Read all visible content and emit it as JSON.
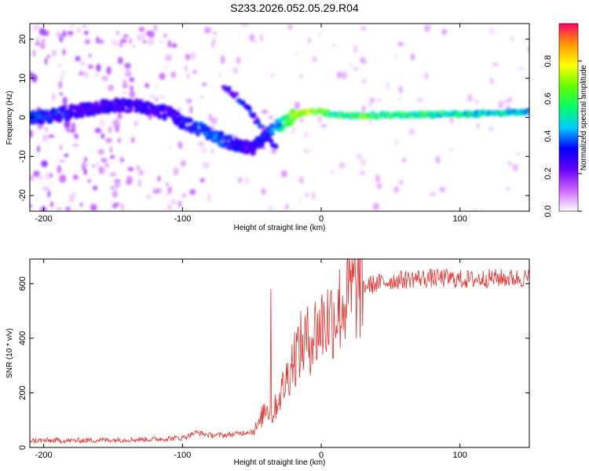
{
  "title": "S233.2026.052.05.29.R04",
  "chart_data": [
    {
      "type": "heatmap",
      "xlabel": "Height of straight line (km)",
      "ylabel": "Frequency (Hz)",
      "xlim": [
        -210,
        150
      ],
      "ylim": [
        -24,
        24
      ],
      "x_ticks": [
        -200,
        -100,
        0,
        100
      ],
      "y_ticks": [
        -20,
        -10,
        0,
        10,
        20
      ],
      "colorbar": {
        "label": "Normalized spectral amplitude",
        "range": [
          0,
          1
        ],
        "ticks": [
          0.0,
          0.2,
          0.4,
          0.6,
          0.8
        ],
        "colors": [
          "#ffffff",
          "#cc66ff",
          "#6600ff",
          "#0000ff",
          "#00ccff",
          "#00ff66",
          "#66ff00",
          "#ffff00",
          "#ff9900",
          "#ff0066"
        ]
      },
      "ridge": {
        "x": [
          -210,
          -190,
          -170,
          -150,
          -130,
          -110,
          -95,
          -80,
          -70,
          -60,
          -50,
          -40,
          -35,
          -30,
          -25,
          -20,
          -10,
          0,
          10,
          30,
          60,
          100,
          150
        ],
        "freq": [
          0,
          0.5,
          2,
          3,
          3,
          1,
          -2,
          -4,
          -6,
          -7,
          -8,
          -5,
          -3,
          -2,
          -1,
          0.5,
          1.5,
          1.5,
          0.5,
          0.5,
          0.6,
          0.8,
          1.5
        ],
        "amplitude": [
          0.35,
          0.35,
          0.3,
          0.3,
          0.3,
          0.3,
          0.35,
          0.4,
          0.4,
          0.3,
          0.3,
          0.35,
          0.4,
          0.5,
          0.6,
          0.75,
          0.8,
          0.7,
          0.6,
          0.65,
          0.6,
          0.55,
          0.45
        ]
      },
      "second_branch": {
        "x": [
          -70,
          -60,
          -50,
          -40,
          -33
        ],
        "freq": [
          8,
          5,
          1,
          -4,
          -8
        ]
      }
    },
    {
      "type": "line",
      "xlabel": "Height of straight line (km)",
      "ylabel": "SNR (10 * v/v)",
      "xlim": [
        -210,
        150
      ],
      "ylim": [
        0,
        690
      ],
      "x_ticks": [
        -200,
        -100,
        0,
        100
      ],
      "y_ticks": [
        0,
        200,
        400,
        600
      ],
      "color": "#e8322e",
      "series": [
        {
          "x": [
            -210,
            -180,
            -150,
            -120,
            -100,
            -90,
            -80,
            -70,
            -60,
            -50,
            -45,
            -40,
            -35,
            -30,
            -25,
            -20,
            -15,
            -10,
            -5,
            0,
            5,
            10,
            15,
            20,
            25,
            30,
            40,
            50,
            60,
            70,
            80,
            90,
            100,
            110,
            120,
            130,
            140,
            150
          ],
          "values": [
            25,
            25,
            28,
            30,
            35,
            55,
            45,
            45,
            50,
            60,
            80,
            150,
            120,
            190,
            250,
            330,
            370,
            390,
            420,
            450,
            470,
            490,
            520,
            560,
            580,
            590,
            600,
            610,
            615,
            620,
            620,
            620,
            615,
            615,
            620,
            620,
            620,
            620
          ]
        }
      ]
    }
  ]
}
